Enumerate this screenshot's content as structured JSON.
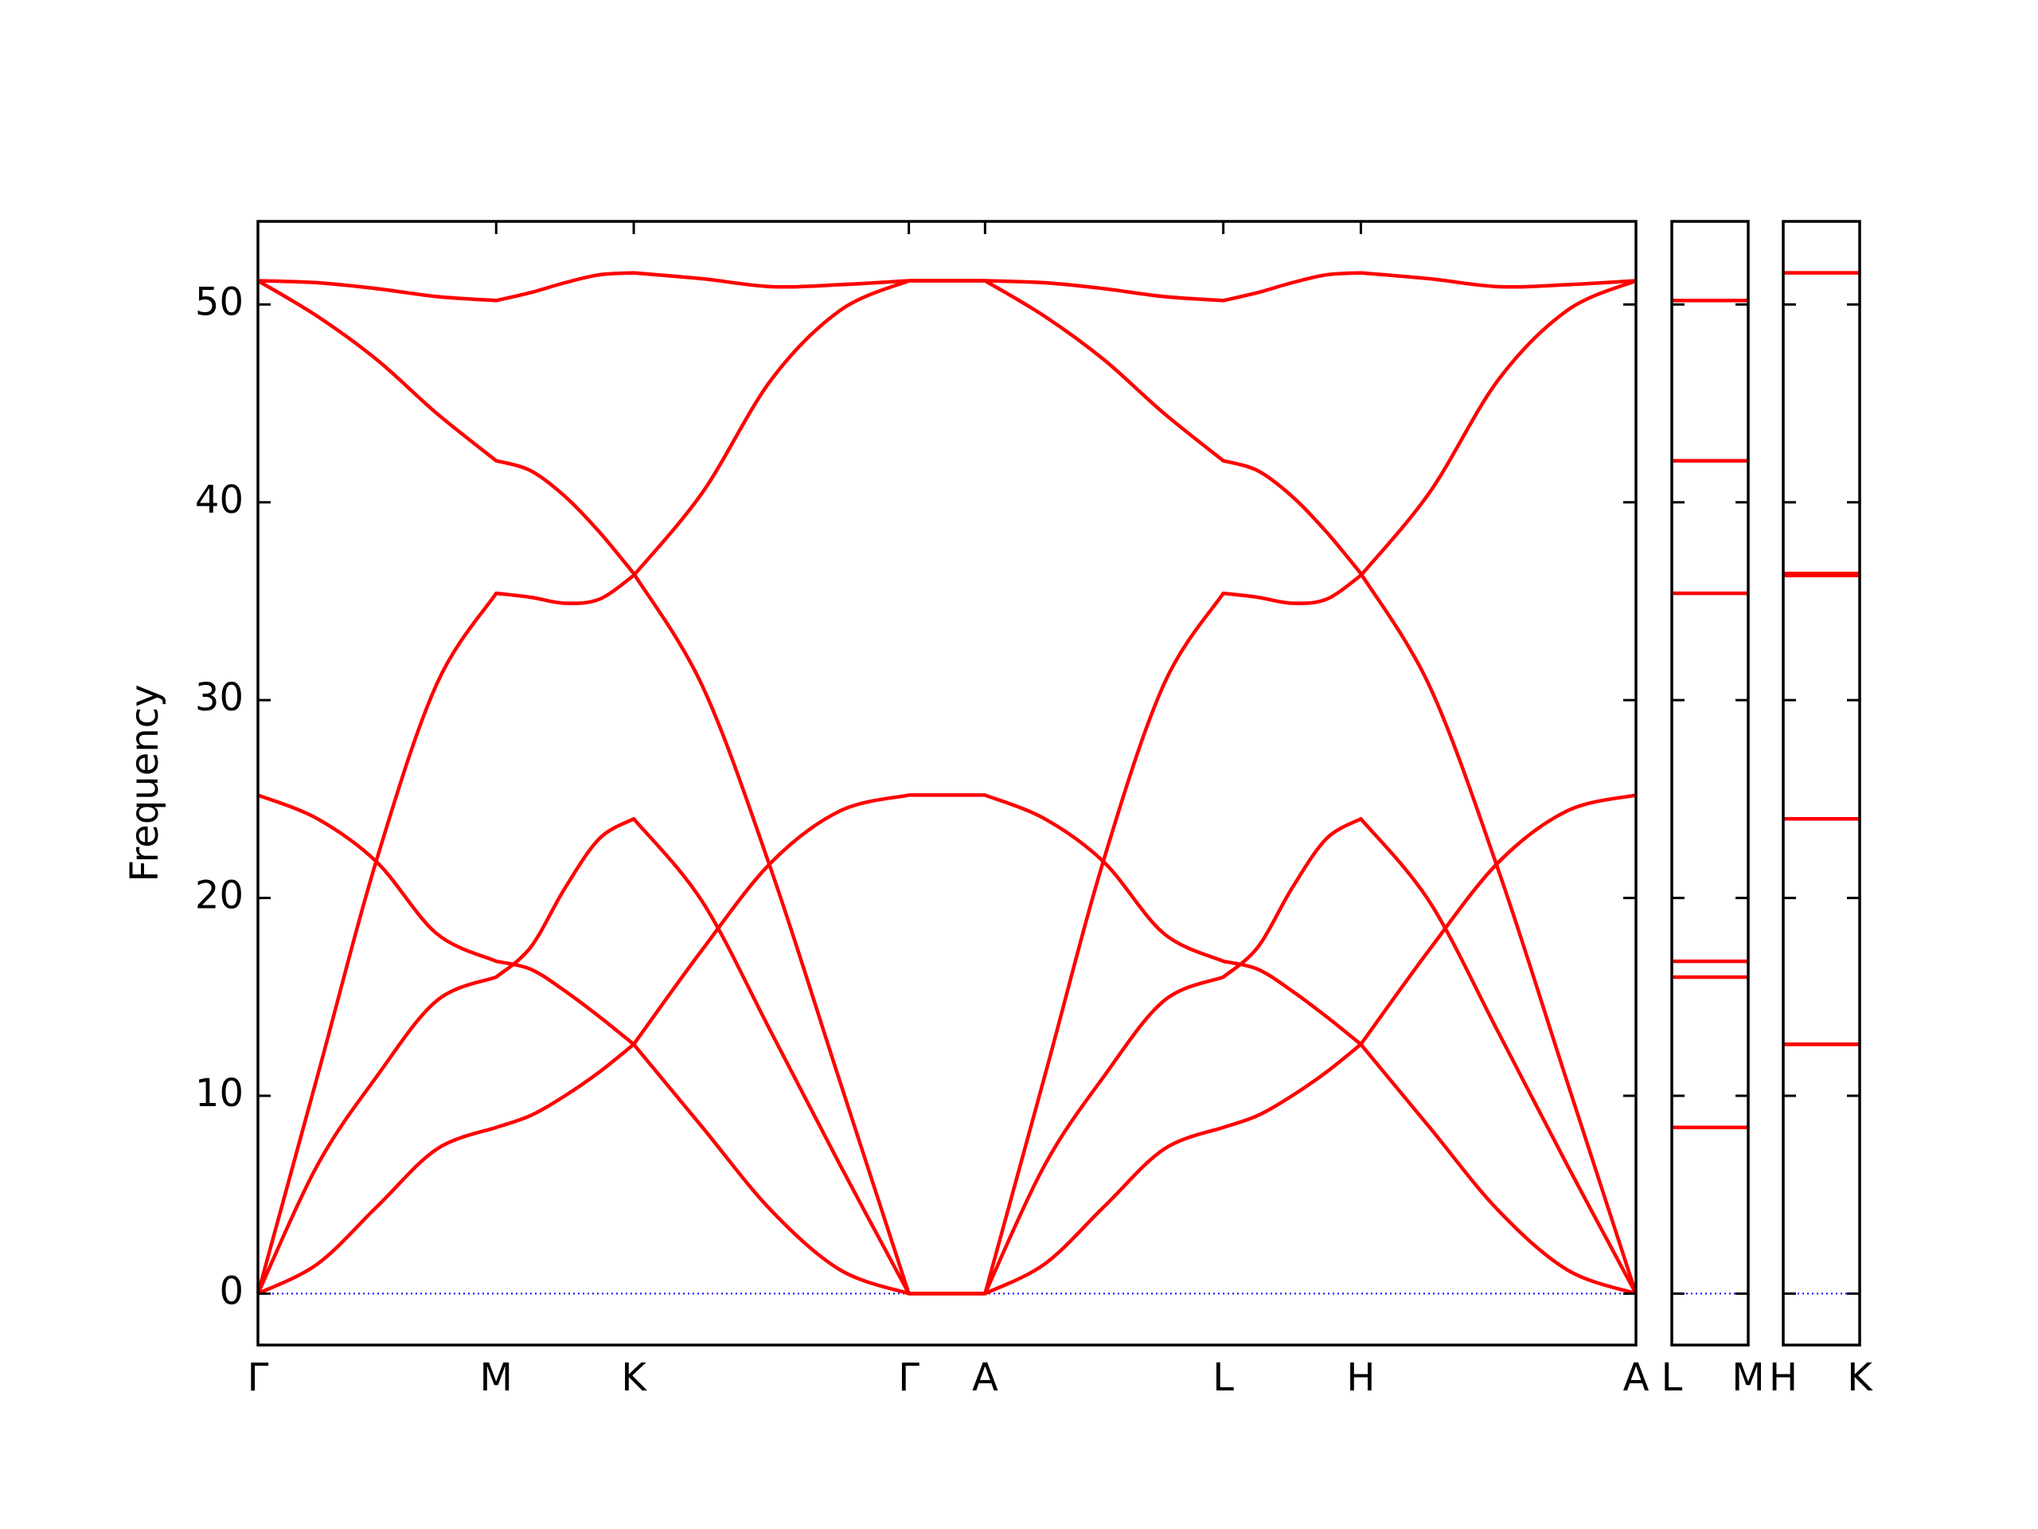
{
  "chart_data": [
    {
      "type": "line",
      "ylabel": "Frequency",
      "x": [
        0,
        0.2165,
        0.433,
        0.6495,
        0.866,
        0.991,
        1.116,
        1.241,
        1.366,
        1.616,
        1.866,
        2.116,
        2.366,
        2.435,
        2.504,
        2.574,
        2.643,
        2.86,
        3.076,
        3.293,
        3.509,
        3.634,
        3.759,
        3.884,
        4.009,
        4.259,
        4.509,
        4.759,
        5.009
      ],
      "xlim": [
        0,
        5.009
      ],
      "xticks": [
        {
          "value": 0,
          "label": "Γ"
        },
        {
          "value": 0.866,
          "label": "M"
        },
        {
          "value": 1.366,
          "label": "K"
        },
        {
          "value": 2.366,
          "label": "Γ"
        },
        {
          "value": 2.643,
          "label": "A"
        },
        {
          "value": 3.509,
          "label": "L"
        },
        {
          "value": 4.009,
          "label": "H"
        },
        {
          "value": 5.009,
          "label": "A"
        }
      ],
      "ylim": [
        -2.6,
        54.2
      ],
      "yticks": [
        0,
        10,
        20,
        30,
        40,
        50
      ],
      "ytick_labels": true,
      "hline": 0,
      "hline_color": "#0000ff",
      "series": [
        {
          "color": "#ff0000",
          "values": [
            51.2,
            51.1,
            50.8,
            50.4,
            50.2,
            50.6,
            51.1,
            51.5,
            51.6,
            51.3,
            50.9,
            51.0,
            51.2,
            51.2,
            51.2,
            51.2,
            51.2,
            51.1,
            50.8,
            50.4,
            50.2,
            50.6,
            51.1,
            51.5,
            51.6,
            51.3,
            50.9,
            51.0,
            51.2
          ]
        },
        {
          "color": "#ff0000",
          "values": [
            51.2,
            49.4,
            47.2,
            44.5,
            42.1,
            41.6,
            40.3,
            38.5,
            36.4,
            30.7,
            21.4,
            10.7,
            0,
            0,
            0,
            0,
            0,
            11,
            22,
            30.8,
            35.4,
            35.2,
            34.9,
            35.1,
            36.3,
            40.5,
            46.2,
            49.7,
            51.2
          ]
        },
        {
          "color": "#ff0000",
          "values": [
            0,
            11,
            22,
            30.8,
            35.4,
            35.2,
            34.9,
            35.1,
            36.3,
            40.5,
            46.2,
            49.7,
            51.2,
            51.2,
            51.2,
            51.2,
            51.2,
            49.4,
            47.2,
            44.5,
            42.1,
            41.6,
            40.3,
            38.5,
            36.4,
            30.7,
            21.4,
            10.7,
            0
          ]
        },
        {
          "color": "#ff0000",
          "values": [
            25.2,
            24.0,
            21.8,
            18.2,
            16.8,
            16.4,
            15.3,
            14.0,
            12.6,
            8.4,
            4.2,
            1.2,
            0,
            0,
            0,
            0,
            0,
            6.5,
            11,
            14.8,
            16.0,
            17.5,
            20.5,
            23.0,
            24.0,
            19.8,
            13.2,
            6.5,
            0
          ]
        },
        {
          "color": "#ff0000",
          "values": [
            0,
            6.5,
            11,
            14.8,
            16.0,
            17.5,
            20.5,
            23.0,
            24.0,
            19.8,
            13.2,
            6.5,
            0,
            0,
            0,
            0,
            0,
            1.5,
            4.4,
            7.3,
            8.4,
            9.0,
            10.0,
            11.2,
            12.6,
            17.4,
            21.8,
            24.4,
            25.2
          ]
        },
        {
          "color": "#ff0000",
          "values": [
            0,
            1.5,
            4.4,
            7.3,
            8.4,
            9.0,
            10.0,
            11.2,
            12.6,
            17.4,
            21.8,
            24.4,
            25.2,
            25.2,
            25.2,
            25.2,
            25.2,
            24.0,
            21.8,
            18.2,
            16.8,
            16.4,
            15.3,
            14.0,
            12.6,
            8.4,
            4.2,
            1.2,
            0
          ]
        }
      ]
    },
    {
      "type": "line",
      "x": [
        0,
        0.277
      ],
      "xlim": [
        0,
        0.277
      ],
      "xticks": [
        {
          "value": 0,
          "label": "L"
        },
        {
          "value": 0.277,
          "label": "M"
        }
      ],
      "ylim": [
        -2.6,
        54.2
      ],
      "yticks": [
        0,
        10,
        20,
        30,
        40,
        50
      ],
      "ytick_labels": false,
      "hline": 0,
      "hline_color": "#0000ff",
      "series": [
        {
          "color": "#ff0000",
          "values": [
            50.2,
            50.2
          ]
        },
        {
          "color": "#ff0000",
          "values": [
            42.1,
            42.1
          ]
        },
        {
          "color": "#ff0000",
          "values": [
            35.4,
            35.4
          ]
        },
        {
          "color": "#ff0000",
          "values": [
            16.8,
            16.8
          ]
        },
        {
          "color": "#ff0000",
          "values": [
            16.0,
            16.0
          ]
        },
        {
          "color": "#ff0000",
          "values": [
            8.4,
            8.4
          ]
        }
      ]
    },
    {
      "type": "line",
      "x": [
        0,
        0.5
      ],
      "xlim": [
        0,
        0.5
      ],
      "xticks": [
        {
          "value": 0,
          "label": "H"
        },
        {
          "value": 0.5,
          "label": "K"
        }
      ],
      "ylim": [
        -2.6,
        54.2
      ],
      "yticks": [
        0,
        10,
        20,
        30,
        40,
        50
      ],
      "ytick_labels": false,
      "hline": 0,
      "hline_color": "#0000ff",
      "series": [
        {
          "color": "#ff0000",
          "values": [
            51.6,
            51.6
          ]
        },
        {
          "color": "#ff0000",
          "values": [
            36.4,
            36.4
          ]
        },
        {
          "color": "#ff0000",
          "values": [
            36.3,
            36.3
          ]
        },
        {
          "color": "#ff0000",
          "values": [
            24.0,
            24.0
          ]
        },
        {
          "color": "#ff0000",
          "values": [
            12.6,
            12.6
          ]
        },
        {
          "color": "#ff0000",
          "values": [
            12.6,
            12.6
          ]
        }
      ]
    }
  ]
}
